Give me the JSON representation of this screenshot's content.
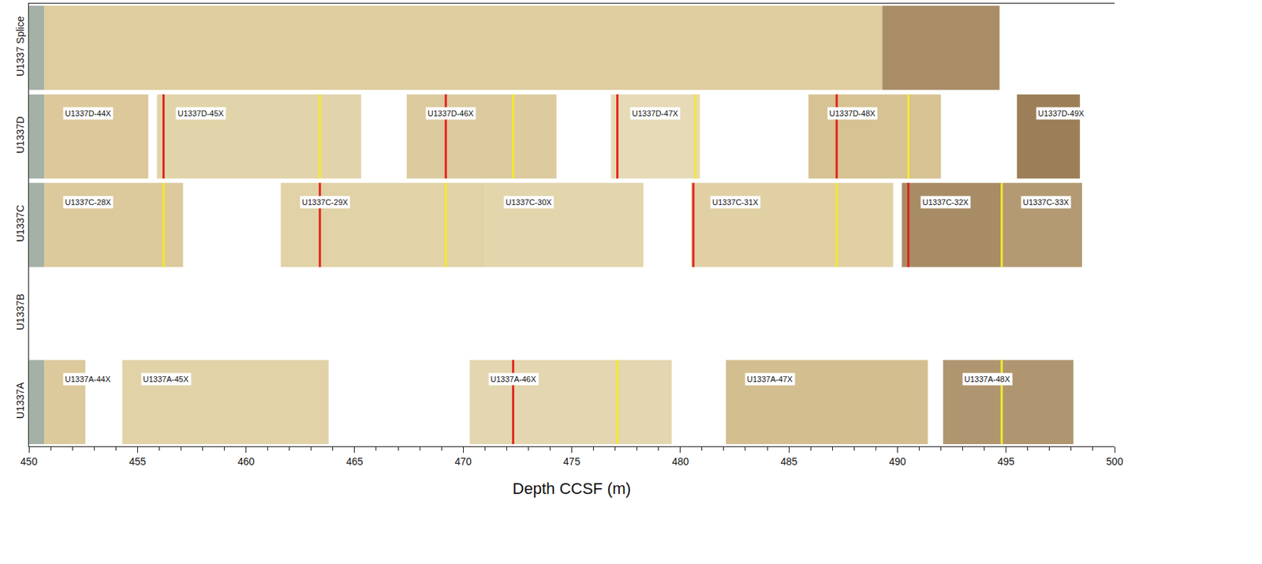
{
  "chart_data": {
    "type": "core_splice",
    "x_title": "Depth CCSF (m)",
    "xlim": [
      450,
      500
    ],
    "xticks": [
      450,
      455,
      460,
      465,
      470,
      475,
      480,
      485,
      490,
      495,
      500
    ],
    "grid": false,
    "rows": [
      {
        "name": "U1337 Splice",
        "cores": [
          {
            "top": 450,
            "bottom": 450.7,
            "color": "#a3b1a6"
          },
          {
            "top": 450.7,
            "bottom": 489.3,
            "color": "#dfcd9f"
          },
          {
            "top": 489.3,
            "bottom": 494.7,
            "color": "#a98d66"
          }
        ],
        "ties": []
      },
      {
        "name": "U1337D",
        "cores": [
          {
            "top": 450,
            "bottom": 450.7,
            "color": "#a3b1a6"
          },
          {
            "name": "U1337D-44X",
            "top": 450.7,
            "bottom": 455.5,
            "color": "#dcc89a"
          },
          {
            "name": "U1337D-45X",
            "top": 455.9,
            "bottom": 465.3,
            "color": "#e2d4aa"
          },
          {
            "name": "U1337D-46X",
            "top": 467.4,
            "bottom": 474.3,
            "color": "#dccb9f"
          },
          {
            "name": "U1337D-47X",
            "top": 476.8,
            "bottom": 480.9,
            "color": "#e6dab7"
          },
          {
            "name": "U1337D-48X",
            "top": 485.9,
            "bottom": 492.0,
            "color": "#d6c293"
          },
          {
            "name": "U1337D-49X",
            "top": 495.5,
            "bottom": 498.4,
            "color": "#9c7f58"
          }
        ],
        "ties": [
          {
            "depth": 456.2,
            "color": "#e0231c"
          },
          {
            "depth": 463.4,
            "color": "#f5e92a"
          },
          {
            "depth": 469.2,
            "color": "#e0231c"
          },
          {
            "depth": 472.3,
            "color": "#f5e92a"
          },
          {
            "depth": 477.1,
            "color": "#e0231c"
          },
          {
            "depth": 480.7,
            "color": "#f5e92a"
          },
          {
            "depth": 487.2,
            "color": "#e0231c"
          },
          {
            "depth": 490.5,
            "color": "#f5e92a"
          }
        ]
      },
      {
        "name": "U1337C",
        "cores": [
          {
            "top": 450,
            "bottom": 450.7,
            "color": "#a3b1a6"
          },
          {
            "name": "U1337C-28X",
            "top": 450.7,
            "bottom": 457.1,
            "color": "#dcc99c"
          },
          {
            "name": "U1337C-29X",
            "top": 461.6,
            "bottom": 471.0,
            "color": "#e1d2a7"
          },
          {
            "name": "U1337C-30X",
            "top": 471.0,
            "bottom": 478.3,
            "color": "#e3d5ac"
          },
          {
            "name": "U1337C-31X",
            "top": 480.5,
            "bottom": 489.8,
            "color": "#e0d0a4"
          },
          {
            "name": "U1337C-32X",
            "top": 490.2,
            "bottom": 494.8,
            "color": "#a88c65"
          },
          {
            "name": "U1337C-33X",
            "top": 494.8,
            "bottom": 498.5,
            "color": "#b39a72"
          }
        ],
        "ties": [
          {
            "depth": 456.2,
            "color": "#f5e92a"
          },
          {
            "depth": 463.4,
            "color": "#e0231c"
          },
          {
            "depth": 469.2,
            "color": "#f5e92a"
          },
          {
            "depth": 480.6,
            "color": "#e0231c"
          },
          {
            "depth": 487.2,
            "color": "#f5e92a"
          },
          {
            "depth": 490.5,
            "color": "#e0231c"
          },
          {
            "depth": 494.8,
            "color": "#f5e92a"
          }
        ]
      },
      {
        "name": "U1337B",
        "cores": [],
        "ties": []
      },
      {
        "name": "U1337A",
        "cores": [
          {
            "top": 450,
            "bottom": 450.7,
            "color": "#a3b1a6"
          },
          {
            "name": "U1337A-44X",
            "top": 450.7,
            "bottom": 452.6,
            "color": "#dcc99c"
          },
          {
            "name": "U1337A-45X",
            "top": 454.3,
            "bottom": 463.8,
            "color": "#e1d2a8"
          },
          {
            "name": "U1337A-46X",
            "top": 470.3,
            "bottom": 479.6,
            "color": "#e3d6b0"
          },
          {
            "name": "U1337A-47X",
            "top": 482.1,
            "bottom": 491.4,
            "color": "#d3be90"
          },
          {
            "name": "U1337A-48X",
            "top": 492.1,
            "bottom": 498.1,
            "color": "#b09670"
          }
        ],
        "ties": [
          {
            "depth": 472.3,
            "color": "#e0231c"
          },
          {
            "depth": 477.1,
            "color": "#f5e92a"
          },
          {
            "depth": 494.8,
            "color": "#f5e92a"
          }
        ]
      }
    ]
  }
}
